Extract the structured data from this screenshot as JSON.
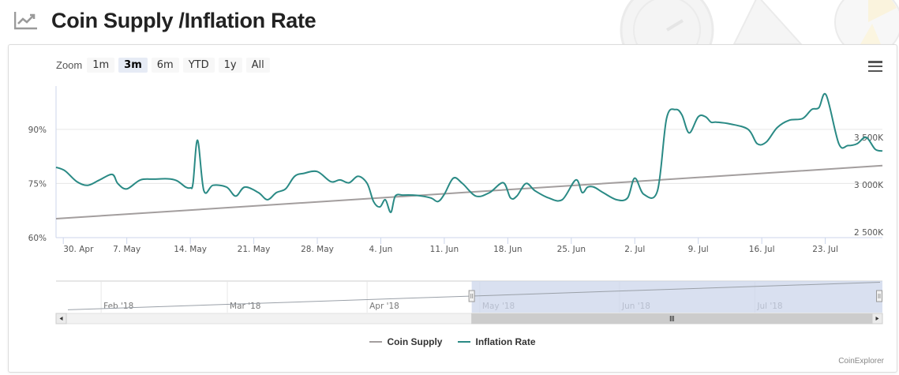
{
  "header": {
    "title": "Coin Supply /Inflation Rate",
    "icon": "line-chart-icon"
  },
  "toolbar": {
    "zoom_label": "Zoom",
    "zoom_buttons": [
      "1m",
      "3m",
      "6m",
      "YTD",
      "1y",
      "All"
    ],
    "active_zoom": "3m",
    "menu_icon": "hamburger-menu-icon"
  },
  "credit": "CoinExplorer",
  "colors": {
    "coin_supply": "#a39e9e",
    "inflation_rate": "#2a8a85",
    "navigator_mask": "#ccd6eb"
  },
  "chart_data": {
    "type": "line",
    "title": "Coin Supply /Inflation Rate",
    "x_tick_labels": [
      "30. Apr",
      "7. May",
      "14. May",
      "21. May",
      "28. May",
      "4. Jun",
      "11. Jun",
      "18. Jun",
      "25. Jun",
      "2. Jul",
      "9. Jul",
      "16. Jul",
      "23. Jul"
    ],
    "x_tick_days": [
      0,
      7,
      14,
      21,
      28,
      35,
      42,
      49,
      56,
      63,
      70,
      77,
      84
    ],
    "x_range_days": [
      -0.8,
      90.3
    ],
    "x_origin_date": "30. Apr",
    "left_axis": {
      "tick_labels": [
        "60%",
        "75%",
        "90%"
      ],
      "ticks": [
        60,
        75,
        90
      ],
      "range": [
        60,
        102
      ]
    },
    "right_axis": {
      "tick_labels": [
        "2 500K",
        "3 000K",
        "3 500K"
      ],
      "ticks": [
        2500,
        3000,
        3500
      ],
      "unit": "K",
      "range": [
        2500,
        4100
      ]
    },
    "series": [
      {
        "name": "Coin Supply",
        "axis": "right",
        "x": [
          -0.8,
          90.3
        ],
        "values": [
          2700,
          3260
        ]
      },
      {
        "name": "Inflation Rate",
        "axis": "left",
        "x": [
          -0.8,
          0.2,
          1.5,
          2.7,
          4.0,
          5.4,
          6.0,
          7.0,
          8.5,
          10.0,
          11.5,
          12.5,
          13.5,
          14.0,
          14.3,
          14.8,
          15.5,
          16.5,
          18.0,
          19.0,
          20.0,
          21.5,
          22.5,
          23.5,
          24.5,
          25.5,
          26.5,
          28.0,
          29.5,
          30.5,
          31.5,
          32.5,
          33.5,
          34.2,
          34.9,
          35.5,
          36.1,
          36.6,
          37.5,
          39.0,
          40.5,
          41.3,
          42.0,
          43.0,
          44.0,
          45.5,
          47.0,
          48.5,
          49.3,
          50.0,
          51.0,
          52.0,
          53.5,
          55.0,
          56.5,
          57.2,
          57.8,
          58.5,
          59.5,
          61.0,
          62.2,
          63.0,
          64.0,
          65.5,
          66.5,
          67.5,
          68.2,
          69.0,
          70.0,
          70.8,
          71.4,
          72.0,
          73.5,
          75.5,
          76.5,
          77.5,
          78.7,
          80.0,
          81.5,
          82.5,
          83.3,
          84.1,
          85.5,
          86.5,
          87.5,
          88.5,
          89.5,
          90.3
        ],
        "values": [
          79.5,
          78.5,
          75.5,
          74.5,
          76.0,
          77.5,
          75.0,
          73.5,
          76.0,
          76.2,
          76.3,
          75.8,
          74.0,
          73.8,
          75.0,
          87.0,
          73.0,
          74.5,
          74.0,
          71.5,
          74.0,
          72.5,
          70.5,
          72.5,
          73.5,
          77.0,
          77.8,
          78.3,
          75.5,
          76.0,
          75.2,
          77.0,
          75.0,
          70.0,
          68.5,
          70.5,
          67.0,
          71.5,
          71.8,
          71.7,
          71.0,
          70.0,
          72.0,
          76.5,
          75.0,
          71.5,
          72.5,
          75.2,
          71.0,
          71.5,
          75.0,
          73.0,
          71.0,
          70.5,
          76.0,
          72.5,
          74.0,
          74.0,
          72.5,
          70.5,
          71.0,
          76.5,
          72.0,
          73.0,
          93.0,
          95.5,
          94.0,
          89.0,
          93.5,
          93.5,
          92.0,
          92.0,
          91.5,
          90.0,
          86.0,
          86.5,
          90.5,
          92.5,
          93.0,
          95.5,
          96.0,
          99.5,
          86.0,
          85.5,
          86.0,
          87.8,
          84.5,
          84.0
        ]
      }
    ],
    "legend": [
      "Coin Supply",
      "Inflation Rate"
    ],
    "legend_position": "bottom-center",
    "grid": true
  },
  "navigator": {
    "labels": [
      "Feb '18",
      "Mar '18",
      "Apr '18",
      "May '18",
      "Jun '18",
      "Jul '18"
    ],
    "label_days": [
      -83,
      -55,
      -24,
      1,
      32,
      62
    ],
    "range_days": [
      -93,
      90.3
    ],
    "selected_days": [
      -0.8,
      90.3
    ],
    "series_values": [
      2300,
      3260
    ],
    "series_range": [
      2200,
      3300
    ]
  }
}
